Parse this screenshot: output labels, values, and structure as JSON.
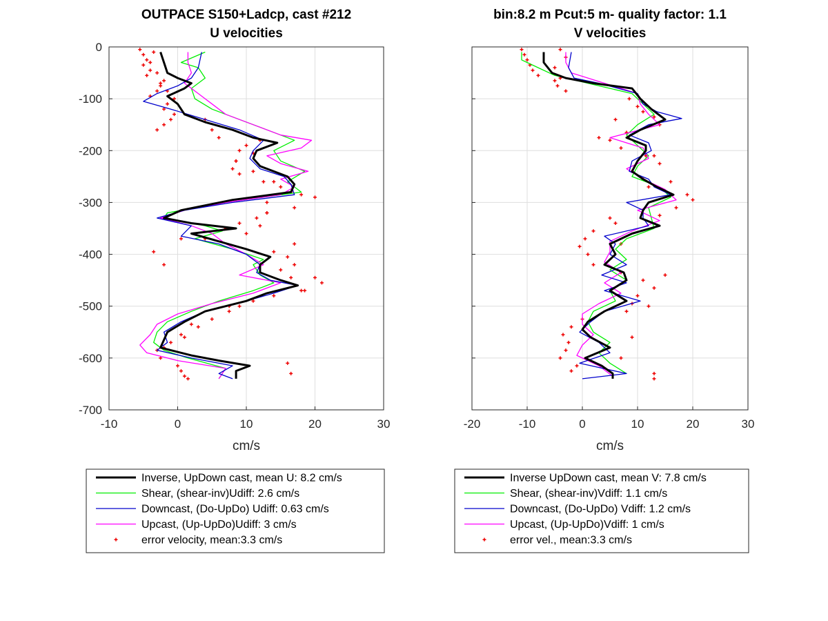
{
  "chart_data": [
    {
      "type": "line",
      "title": [
        "OUTPACE S150+Ladcp, cast #212",
        "U velocities"
      ],
      "xlabel": "cm/s",
      "ylabel": "",
      "xlim": [
        -10,
        30
      ],
      "ylim": [
        -700,
        0
      ],
      "xticks": [
        -10,
        0,
        10,
        20,
        30
      ],
      "yticks": [
        0,
        -100,
        -200,
        -300,
        -400,
        -500,
        -600,
        -700
      ],
      "grid": true,
      "legend_position": "below",
      "series": [
        {
          "name": "Inverse, UpDown cast, mean U:  8.2 cm/s",
          "color": "#000000",
          "depth": [
            -10,
            -30,
            -50,
            -60,
            -70,
            -80,
            -95,
            -110,
            -130,
            -145,
            -160,
            -175,
            -185,
            -200,
            -215,
            -230,
            -250,
            -265,
            -280,
            -295,
            -315,
            -330,
            -340,
            -350,
            -360,
            -375,
            -390,
            -405,
            -420,
            -435,
            -450,
            -460,
            -475,
            -490,
            -510,
            -530,
            -550,
            -565,
            -580,
            -595,
            -605,
            -615,
            -625,
            -640
          ],
          "values": [
            -2.5,
            -2,
            -1.5,
            0,
            2,
            1,
            -1.5,
            0,
            1,
            4,
            8,
            11,
            14.5,
            11.5,
            11,
            12,
            16,
            17,
            16.5,
            8,
            0.5,
            -2,
            2,
            8.5,
            2,
            6,
            10,
            13.5,
            12,
            12,
            15,
            17.5,
            13,
            10,
            4,
            1,
            -1.5,
            -2,
            -2.5,
            2,
            6,
            10.5,
            8.5,
            8.5
          ]
        },
        {
          "name": "Shear, (shear-inv)Udiff:  2.6 cm/s",
          "color": "#00ee00",
          "depth": [
            -10,
            -30,
            -40,
            -60,
            -80,
            -100,
            -120,
            -140,
            -160,
            -180,
            -200,
            -220,
            -240,
            -260,
            -280,
            -300,
            -320,
            -330,
            -345,
            -355,
            -370,
            -390,
            -410,
            -420,
            -440,
            -455,
            -470,
            -490,
            -510,
            -530,
            -550,
            -570,
            -585,
            -600,
            -620,
            -640
          ],
          "values": [
            4,
            0.5,
            3,
            4,
            2,
            2.5,
            5,
            9,
            13,
            17,
            14,
            15,
            18.5,
            16,
            18,
            7,
            -1.5,
            -2,
            4,
            6.5,
            2.5,
            8,
            12.5,
            11,
            12,
            14,
            11,
            6,
            2,
            -1.5,
            -3,
            -3.5,
            -2,
            1.5,
            7,
            6
          ]
        },
        {
          "name": "Downcast, (Do-UpDo) Udiff:  0.63 cm/s",
          "color": "#0000cc",
          "depth": [
            -10,
            -40,
            -60,
            -75,
            -90,
            -105,
            -120,
            -140,
            -160,
            -180,
            -200,
            -215,
            -235,
            -250,
            -265,
            -285,
            -300,
            -315,
            -330,
            -345,
            -365,
            -380,
            -400,
            -420,
            -435,
            -450,
            -460,
            -475,
            -490,
            -510,
            -530,
            -550,
            -570,
            -585,
            -600,
            -615,
            -630,
            -640
          ],
          "values": [
            3.5,
            3,
            2,
            0,
            -3,
            -5,
            -1,
            4,
            9,
            12.5,
            11,
            10.5,
            12,
            15.5,
            16.5,
            17,
            8,
            1,
            -3,
            2,
            0.5,
            6,
            10,
            12,
            11.5,
            13.5,
            17.5,
            14,
            10,
            4,
            0.5,
            -2,
            -1.5,
            -3,
            2,
            8,
            6,
            8
          ]
        },
        {
          "name": "Upcast, (Up-UpDo)Udiff:  3 cm/s",
          "color": "#ff00ff",
          "depth": [
            -10,
            -30,
            -50,
            -70,
            -90,
            -110,
            -130,
            -150,
            -170,
            -180,
            -195,
            -210,
            -225,
            -240,
            -255,
            -270,
            -285,
            -300,
            -315,
            -330,
            -345,
            -360,
            -380,
            -400,
            -420,
            -440,
            -455,
            -475,
            -495,
            -515,
            -535,
            -555,
            -575,
            -590,
            -605,
            -620,
            -640
          ],
          "values": [
            1.5,
            1.5,
            2,
            1,
            3,
            5,
            7,
            11,
            15,
            19.5,
            18,
            13,
            15,
            19,
            15,
            17,
            15,
            7,
            1,
            -2.5,
            2,
            5,
            7,
            10,
            12.5,
            9,
            15,
            11,
            5,
            0,
            -3,
            -4,
            -5.5,
            -4.5,
            0,
            7,
            6
          ]
        },
        {
          "name": "error velocity, mean:3.3 cm/s",
          "color": "#ee0000",
          "marker": "+",
          "depth": [
            -5,
            -15,
            -25,
            -35,
            -45,
            -55,
            -65,
            -75,
            -85,
            -95,
            -110,
            -120,
            -130,
            -140,
            -150,
            -160,
            -175,
            -190,
            -205,
            -220,
            -235,
            -245,
            -260,
            -270,
            -280,
            -290,
            -300,
            -310,
            -320,
            -330,
            -340,
            -350,
            -360,
            -370,
            -380,
            -395,
            -405,
            -420,
            -430,
            -445,
            -455,
            -470,
            -480,
            -490,
            -500,
            -510,
            -525,
            -540,
            -555,
            -570,
            -585,
            -600,
            -615,
            -625,
            -635,
            -640,
            -10,
            -30,
            -50,
            -70,
            -85,
            -100,
            -140,
            -160,
            -180,
            -200,
            -220,
            -240,
            -260,
            -285,
            -320,
            -345,
            -370,
            -395,
            -420,
            -445,
            -470,
            -500,
            -535,
            -560,
            -580,
            -610,
            -630
          ],
          "values": [
            -5.5,
            -5,
            -4.5,
            -5,
            -4,
            -4.5,
            -2,
            -2.5,
            -3,
            -4,
            -1.5,
            -2,
            -0.5,
            -1,
            -2,
            -3,
            6,
            10,
            11,
            8.5,
            8,
            9,
            12.5,
            15,
            16.5,
            20,
            13,
            17,
            13,
            11.5,
            9,
            7,
            10,
            4,
            17,
            14,
            16,
            17,
            15,
            20,
            21,
            18,
            14,
            11,
            9,
            7.5,
            5,
            3,
            0.5,
            -1,
            -3,
            -2.5,
            0,
            0.5,
            1,
            1.5,
            -3.5,
            -4,
            -3,
            -2.5,
            -1.5,
            -0.5,
            4,
            5,
            12,
            9,
            8.5,
            11,
            14,
            18,
            13,
            12,
            0.5,
            -3.5,
            -2,
            16.5,
            18.5,
            7.5,
            2,
            1,
            -2,
            16,
            16.5
          ]
        }
      ],
      "legend_entries": [
        "Inverse, UpDown cast, mean U:  8.2 cm/s",
        "Shear, (shear-inv)Udiff:  2.6 cm/s",
        "Downcast, (Do-UpDo) Udiff:  0.63 cm/s",
        "Upcast, (Up-UpDo)Udiff:  3 cm/s",
        "error velocity, mean:3.3 cm/s"
      ]
    },
    {
      "type": "line",
      "title": [
        "bin:8.2 m  Pcut:5 m- quality factor:  1.1",
        "V velocities"
      ],
      "xlabel": "cm/s",
      "ylabel": "",
      "xlim": [
        -20,
        30
      ],
      "ylim": [
        -700,
        0
      ],
      "xticks": [
        -20,
        -10,
        0,
        10,
        20,
        30
      ],
      "grid": true,
      "legend_position": "below",
      "series": [
        {
          "name": "Inverse UpDown cast, mean V:  7.8 cm/s",
          "color": "#000000",
          "depth": [
            -10,
            -30,
            -50,
            -60,
            -70,
            -80,
            -100,
            -120,
            -140,
            -160,
            -175,
            -190,
            -200,
            -220,
            -240,
            -255,
            -270,
            -285,
            -300,
            -315,
            -330,
            -345,
            -360,
            -380,
            -400,
            -420,
            -435,
            -450,
            -470,
            -490,
            -510,
            -530,
            -545,
            -560,
            -580,
            -600,
            -615,
            -630,
            -640
          ],
          "values": [
            -7,
            -7,
            -5.5,
            -3,
            2,
            9,
            10.5,
            12.5,
            15,
            10.5,
            8,
            11.5,
            11.5,
            10,
            9,
            11,
            13.5,
            16.5,
            12,
            11,
            10.5,
            14,
            9,
            5,
            6,
            4,
            7.5,
            8,
            5,
            8,
            4,
            1,
            0,
            1.5,
            5,
            0.5,
            3.5,
            5.5,
            5.5
          ]
        },
        {
          "name": "Shear, (shear-inv)Vdiff:  1.1 cm/s",
          "color": "#00ee00",
          "depth": [
            -10,
            -25,
            -40,
            -55,
            -70,
            -90,
            -110,
            -130,
            -150,
            -170,
            -190,
            -210,
            -230,
            -250,
            -270,
            -290,
            -310,
            -330,
            -350,
            -370,
            -390,
            -410,
            -430,
            -450,
            -470,
            -490,
            -510,
            -530,
            -550,
            -570,
            -590,
            -610,
            -630
          ],
          "values": [
            -11,
            -11,
            -8,
            -5,
            1,
            9,
            11,
            13,
            10,
            8,
            10,
            12,
            10,
            9,
            14,
            16,
            12,
            12.5,
            13,
            8,
            6,
            8,
            5,
            8,
            5,
            6,
            2,
            1,
            2,
            5,
            3,
            5,
            8
          ]
        },
        {
          "name": "Downcast, (Do-UpDo) Vdiff:  1.2 cm/s",
          "color": "#0000cc",
          "depth": [
            -10,
            -40,
            -60,
            -70,
            -90,
            -110,
            -125,
            -138,
            -150,
            -170,
            -185,
            -200,
            -220,
            -240,
            -255,
            -270,
            -285,
            -300,
            -315,
            -330,
            -345,
            -365,
            -380,
            -400,
            -420,
            -440,
            -455,
            -470,
            -490,
            -510,
            -530,
            -550,
            -570,
            -590,
            -610,
            -630,
            -640
          ],
          "values": [
            -2,
            -2.5,
            -1.5,
            3,
            10,
            11,
            13.5,
            18,
            12,
            8.5,
            12,
            12.5,
            9,
            8.5,
            12,
            13,
            16,
            8,
            11,
            11,
            12,
            4,
            6,
            5,
            8,
            3.5,
            8,
            4,
            10.5,
            4,
            1.5,
            -0.5,
            3,
            5,
            -0.5,
            8,
            0
          ]
        },
        {
          "name": "Upcast, (Up-UpDo)Vdiff:  1 cm/s",
          "color": "#ff00ff",
          "depth": [
            -10,
            -30,
            -50,
            -70,
            -90,
            -110,
            -130,
            -150,
            -175,
            -195,
            -215,
            -235,
            -255,
            -275,
            -295,
            -315,
            -335,
            -355,
            -375,
            -395,
            -415,
            -435,
            -455,
            -475,
            -495,
            -515,
            -535,
            -555,
            -575,
            -595,
            -615,
            -635
          ],
          "values": [
            -3,
            -3,
            -2,
            4,
            10,
            10.5,
            12,
            14,
            5,
            11,
            12,
            8,
            11,
            15,
            17,
            10,
            14,
            9,
            5,
            5,
            4,
            7,
            4,
            7,
            3,
            0,
            0,
            2,
            0,
            -1,
            3,
            5.5
          ]
        },
        {
          "name": "error vel., mean:3.3 cm/s",
          "color": "#ee0000",
          "marker": "+",
          "depth": [
            -5,
            -15,
            -25,
            -35,
            -45,
            -55,
            -65,
            -75,
            -85,
            -100,
            -115,
            -125,
            -135,
            -150,
            -165,
            -180,
            -195,
            -210,
            -225,
            -240,
            -255,
            -270,
            -285,
            -295,
            -310,
            -325,
            -340,
            -355,
            -370,
            -385,
            -400,
            -420,
            -435,
            -450,
            -465,
            -480,
            -495,
            -510,
            -525,
            -540,
            -555,
            -570,
            -585,
            -600,
            -615,
            -625,
            -640,
            -5,
            -20,
            -40,
            -60,
            -140,
            -175,
            -210,
            -260,
            -330,
            -380,
            -440,
            -500,
            -560,
            -600,
            -630
          ],
          "values": [
            -11,
            -10.5,
            -10,
            -9.5,
            -9,
            -8,
            -5,
            -4.5,
            -3,
            8.5,
            10,
            11,
            13,
            14,
            8,
            5,
            7,
            13,
            14,
            9,
            11,
            12,
            19,
            20,
            17,
            14,
            6,
            2,
            0.5,
            -0.5,
            1,
            2,
            7,
            11,
            13,
            10,
            9,
            8,
            0,
            -2,
            -3.5,
            -2.5,
            -3,
            -4,
            -1,
            -2,
            13,
            -4,
            -3,
            -5,
            -4,
            6,
            3,
            11.5,
            16,
            5,
            7,
            15,
            12,
            9,
            7,
            13
          ]
        }
      ],
      "legend_entries": [
        "Inverse UpDown cast, mean V:  7.8 cm/s",
        "Shear, (shear-inv)Vdiff:  1.1 cm/s",
        "Downcast, (Do-UpDo) Vdiff:  1.2 cm/s",
        "Upcast, (Up-UpDo)Vdiff:  1 cm/s",
        "error vel., mean:3.3 cm/s"
      ]
    }
  ]
}
